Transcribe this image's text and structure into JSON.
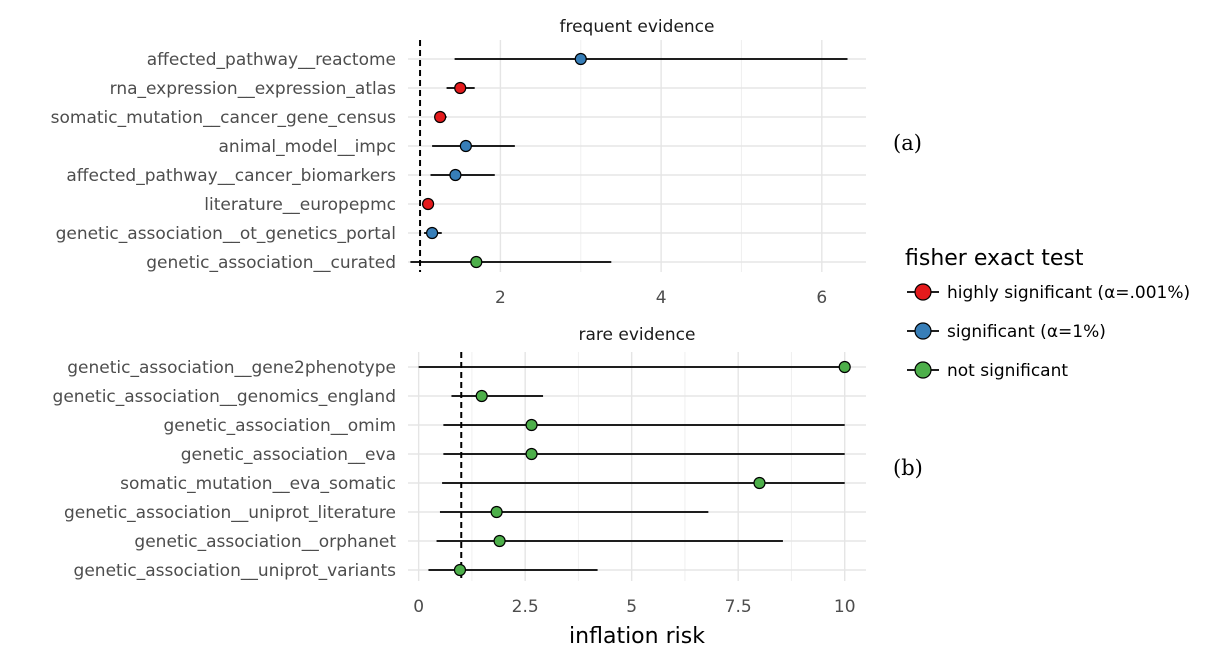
{
  "xlabel": "inflation risk",
  "legend": {
    "title": "fisher exact test",
    "items": [
      {
        "key": "highly",
        "label": "highly significant (α=.001%)",
        "color": "#e41a1c"
      },
      {
        "key": "sig",
        "label": "significant (α=1%)",
        "color": "#377eb8"
      },
      {
        "key": "ns",
        "label": "not significant",
        "color": "#4daf4a"
      }
    ]
  },
  "chart_data": [
    {
      "type": "scatter",
      "subtype": "point-range",
      "title": "frequent evidence",
      "tag": "(a)",
      "reference_line": 1,
      "xlim": [
        0.85,
        6.55
      ],
      "xticks": [
        2,
        4,
        6
      ],
      "xtick_labels": [
        "2",
        "4",
        "6"
      ],
      "grid": true,
      "series": [
        {
          "label": "affected_pathway__reactome",
          "value": 3.0,
          "lower": 1.43,
          "upper": 6.32,
          "significance": "sig"
        },
        {
          "label": "rna_expression__expression_atlas",
          "value": 1.5,
          "lower": 1.33,
          "upper": 1.68,
          "significance": "highly"
        },
        {
          "label": "somatic_mutation__cancer_gene_census",
          "value": 1.25,
          "lower": 1.18,
          "upper": 1.33,
          "significance": "highly"
        },
        {
          "label": "animal_model__impc",
          "value": 1.57,
          "lower": 1.15,
          "upper": 2.18,
          "significance": "sig"
        },
        {
          "label": "affected_pathway__cancer_biomarkers",
          "value": 1.44,
          "lower": 1.13,
          "upper": 1.93,
          "significance": "sig"
        },
        {
          "label": "literature__europepmc",
          "value": 1.1,
          "lower": 1.07,
          "upper": 1.13,
          "significance": "highly"
        },
        {
          "label": "genetic_association__ot_genetics_portal",
          "value": 1.15,
          "lower": 1.05,
          "upper": 1.27,
          "significance": "sig"
        },
        {
          "label": "genetic_association__curated",
          "value": 1.7,
          "lower": 0.88,
          "upper": 3.38,
          "significance": "ns"
        }
      ]
    },
    {
      "type": "scatter",
      "subtype": "point-range",
      "title": "rare evidence",
      "tag": "(b)",
      "reference_line": 1,
      "xlim": [
        -0.25,
        10.5
      ],
      "xticks": [
        0,
        2.5,
        5,
        7.5,
        10
      ],
      "xtick_labels": [
        "0",
        "2.5",
        "5",
        "7.5",
        "10"
      ],
      "grid": true,
      "series": [
        {
          "label": "genetic_association__gene2phenotype",
          "value": 10,
          "lower": 0,
          "upper": 10,
          "significance": "ns"
        },
        {
          "label": "genetic_association__genomics_england",
          "value": 1.48,
          "lower": 0.77,
          "upper": 2.92,
          "significance": "ns"
        },
        {
          "label": "genetic_association__omim",
          "value": 2.65,
          "lower": 0.58,
          "upper": 10,
          "significance": "ns"
        },
        {
          "label": "genetic_association__eva",
          "value": 2.65,
          "lower": 0.58,
          "upper": 10,
          "significance": "ns"
        },
        {
          "label": "somatic_mutation__eva_somatic",
          "value": 8.0,
          "lower": 0.55,
          "upper": 10,
          "significance": "ns"
        },
        {
          "label": "genetic_association__uniprot_literature",
          "value": 1.83,
          "lower": 0.5,
          "upper": 6.8,
          "significance": "ns"
        },
        {
          "label": "genetic_association__orphanet",
          "value": 1.9,
          "lower": 0.42,
          "upper": 8.55,
          "significance": "ns"
        },
        {
          "label": "genetic_association__uniprot_variants",
          "value": 0.97,
          "lower": 0.23,
          "upper": 4.2,
          "significance": "ns"
        }
      ]
    }
  ]
}
